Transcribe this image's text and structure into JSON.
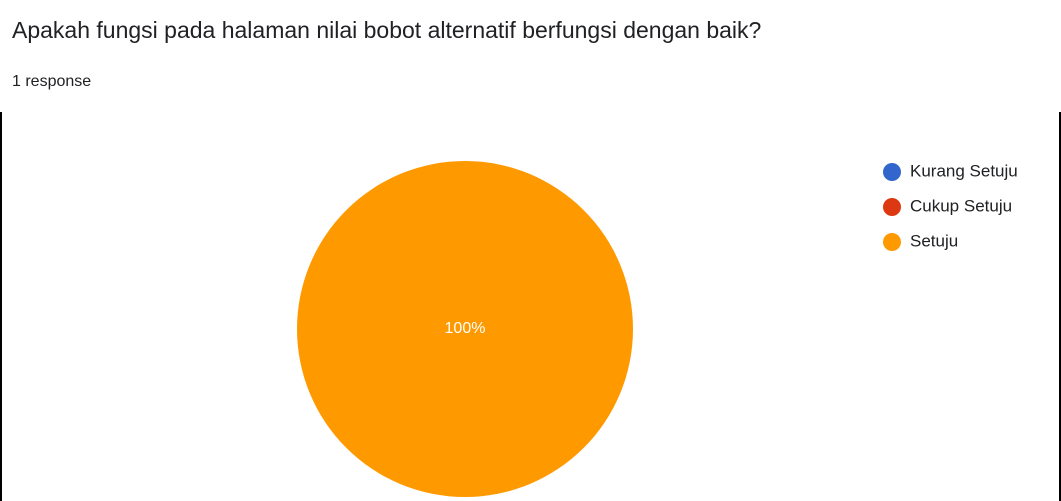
{
  "chart_data": {
    "type": "pie",
    "title": "Apakah fungsi pada halaman nilai bobot alternatif berfungsi dengan baik?",
    "subtitle": "1 response",
    "categories": [
      "Kurang Setuju",
      "Cukup Setuju",
      "Setuju"
    ],
    "values": [
      0,
      0,
      100
    ],
    "value_labels": [
      null,
      null,
      "100%"
    ],
    "colors": [
      "#3366cc",
      "#dc3912",
      "#ff9900"
    ],
    "legend": "right"
  }
}
